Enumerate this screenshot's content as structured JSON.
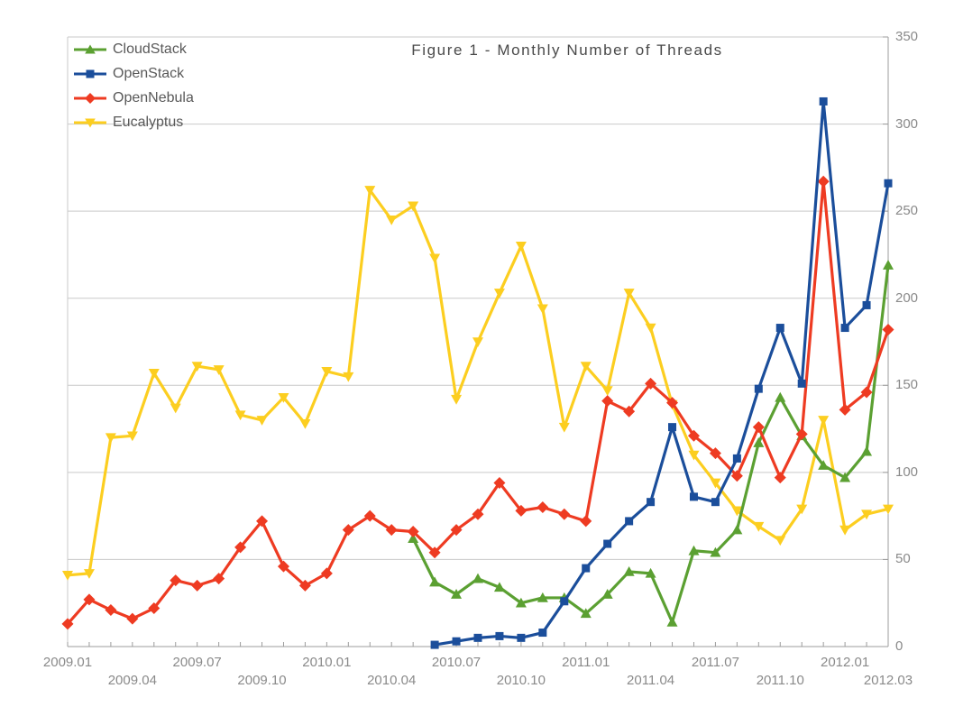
{
  "chart_data": {
    "type": "line",
    "title": "Figure 1 - Monthly Number of Threads",
    "background": "#ffffff",
    "grid": true,
    "grid_color": "#c9c9c9",
    "axis_color": "#9c9c9c",
    "label_color": "#8a8a8a",
    "title_color": "#4a4a4a",
    "legend_position": "top-left",
    "x_months": [
      "2009.01",
      "2009.02",
      "2009.03",
      "2009.04",
      "2009.05",
      "2009.06",
      "2009.07",
      "2009.08",
      "2009.09",
      "2009.10",
      "2009.11",
      "2009.12",
      "2010.01",
      "2010.02",
      "2010.03",
      "2010.04",
      "2010.05",
      "2010.06",
      "2010.07",
      "2010.08",
      "2010.09",
      "2010.10",
      "2010.11",
      "2010.12",
      "2011.01",
      "2011.02",
      "2011.03",
      "2011.04",
      "2011.05",
      "2011.06",
      "2011.07",
      "2011.08",
      "2011.09",
      "2011.10",
      "2011.11",
      "2011.12",
      "2012.01",
      "2012.02",
      "2012.03"
    ],
    "x_ticks": [
      {
        "label": "2009.01",
        "month": 0,
        "row": 1
      },
      {
        "label": "2009.04",
        "month": 3,
        "row": 2
      },
      {
        "label": "2009.07",
        "month": 6,
        "row": 1
      },
      {
        "label": "2009.10",
        "month": 9,
        "row": 2
      },
      {
        "label": "2010.01",
        "month": 12,
        "row": 1
      },
      {
        "label": "2010.04",
        "month": 15,
        "row": 2
      },
      {
        "label": "2010.07",
        "month": 18,
        "row": 1
      },
      {
        "label": "2010.10",
        "month": 21,
        "row": 2
      },
      {
        "label": "2011.01",
        "month": 24,
        "row": 1
      },
      {
        "label": "2011.04",
        "month": 27,
        "row": 2
      },
      {
        "label": "2011.07",
        "month": 30,
        "row": 1
      },
      {
        "label": "2011.10",
        "month": 33,
        "row": 2
      },
      {
        "label": "2012.01",
        "month": 36,
        "row": 1
      },
      {
        "label": "2012.03",
        "month": 38,
        "row": 2
      }
    ],
    "y_axis": {
      "side": "right",
      "min": 0,
      "max": 350,
      "step": 50,
      "labels": [
        "0",
        "50",
        "100",
        "150",
        "200",
        "250",
        "300",
        "350"
      ]
    },
    "series": [
      {
        "name": "CloudStack",
        "color": "#5ba032",
        "marker": "triangle-up",
        "start_month": 16,
        "values": [
          62,
          37,
          30,
          39,
          34,
          25,
          28,
          28,
          19,
          30,
          43,
          42,
          14,
          55,
          54,
          67,
          117,
          143,
          121,
          104,
          97,
          112,
          219
        ]
      },
      {
        "name": "OpenStack",
        "color": "#1b4e9b",
        "marker": "square",
        "start_month": 17,
        "values": [
          1,
          3,
          5,
          6,
          5,
          8,
          26,
          45,
          59,
          72,
          83,
          126,
          86,
          83,
          108,
          148,
          183,
          151,
          313,
          183,
          196,
          266
        ]
      },
      {
        "name": "OpenNebula",
        "color": "#ee3b22",
        "marker": "diamond",
        "start_month": 0,
        "values": [
          13,
          27,
          21,
          16,
          22,
          38,
          35,
          39,
          57,
          72,
          46,
          35,
          42,
          67,
          75,
          67,
          66,
          54,
          67,
          76,
          94,
          78,
          80,
          76,
          72,
          141,
          135,
          151,
          140,
          121,
          111,
          98,
          126,
          97,
          122,
          267,
          136,
          146,
          182
        ]
      },
      {
        "name": "Eucalyptus",
        "color": "#fcce20",
        "marker": "triangle-down",
        "start_month": 0,
        "values": [
          41,
          42,
          120,
          121,
          157,
          137,
          161,
          159,
          133,
          130,
          143,
          128,
          158,
          155,
          262,
          245,
          253,
          223,
          142,
          175,
          203,
          230,
          194,
          126,
          161,
          147,
          203,
          183,
          139,
          110,
          94,
          78,
          69,
          61,
          79,
          130,
          67,
          76,
          79
        ]
      }
    ]
  }
}
